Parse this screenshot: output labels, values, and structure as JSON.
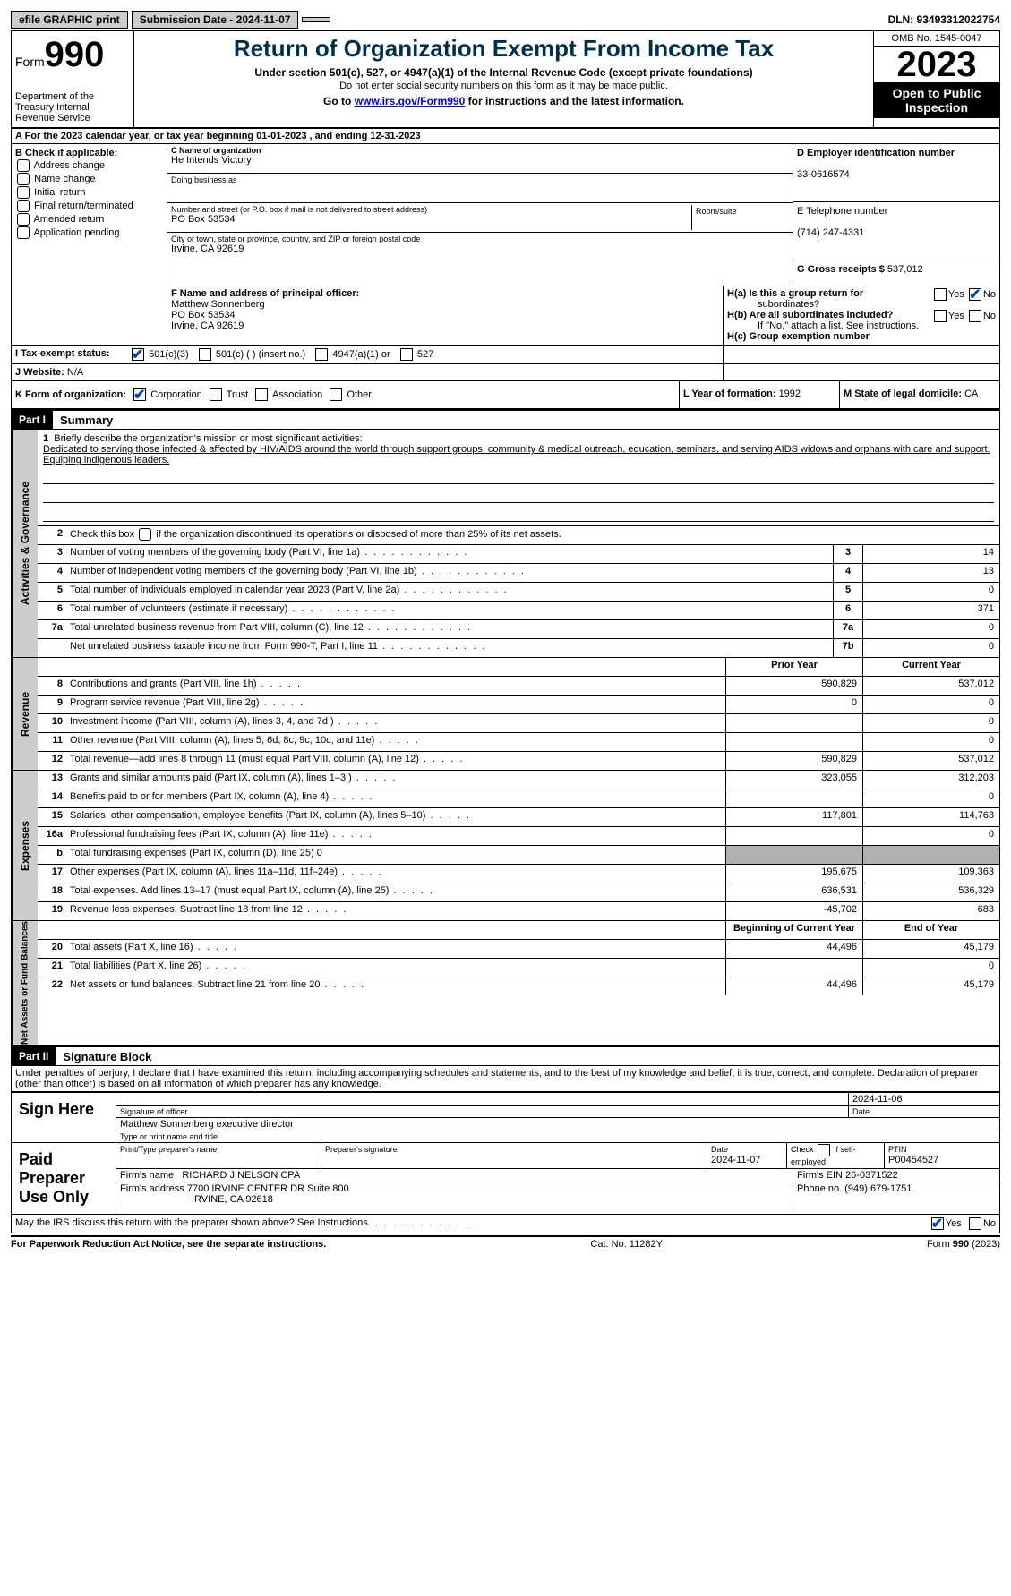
{
  "topbar": {
    "efile": "efile GRAPHIC print",
    "submission_label": "Submission Date - 2024-11-07",
    "dln": "DLN: 93493312022754"
  },
  "header": {
    "form_prefix": "Form",
    "form_number": "990",
    "dept": "Department of the Treasury\nInternal Revenue Service",
    "title": "Return of Organization Exempt From Income Tax",
    "sub1": "Under section 501(c), 527, or 4947(a)(1) of the Internal Revenue Code (except private foundations)",
    "sub2": "Do not enter social security numbers on this form as it may be made public.",
    "goto_prefix": "Go to ",
    "goto_link": "www.irs.gov/Form990",
    "goto_suffix": " for instructions and the latest information.",
    "omb": "OMB No. 1545-0047",
    "year": "2023",
    "open": "Open to Public Inspection"
  },
  "row_a": "A   For the 2023 calendar year, or tax year beginning 01-01-2023    , and ending 12-31-2023",
  "section_b": {
    "heading": "B Check if applicable:",
    "items": [
      "Address change",
      "Name change",
      "Initial return",
      "Final return/terminated",
      "Amended return",
      "Application pending"
    ]
  },
  "section_c": {
    "name_lbl": "C Name of organization",
    "name": "He Intends Victory",
    "dba_lbl": "Doing business as",
    "dba": "",
    "addr_lbl": "Number and street (or P.O. box if mail is not delivered to street address)",
    "addr": "PO Box 53534",
    "room_lbl": "Room/suite",
    "city_lbl": "City or town, state or province, country, and ZIP or foreign postal code",
    "city": "Irvine, CA  92619"
  },
  "section_d": {
    "lbl": "D Employer identification number",
    "val": "33-0616574"
  },
  "section_e": {
    "lbl": "E Telephone number",
    "val": "(714) 247-4331"
  },
  "section_g": {
    "lbl": "G Gross receipts $ ",
    "val": "537,012"
  },
  "section_f": {
    "lbl": "F  Name and address of principal officer:",
    "name": "Matthew Sonnenberg",
    "addr": "PO Box 53534",
    "city": "Irvine, CA  92619"
  },
  "section_h": {
    "ha": "H(a)  Is this a group return for",
    "ha2": "subordinates?",
    "hb": "H(b)  Are all subordinates included?",
    "hb_note": "If \"No,\" attach a list. See instructions.",
    "hc": "H(c)  Group exemption number  ",
    "yes": "Yes",
    "no": "No"
  },
  "section_i": {
    "lbl": "I     Tax-exempt status:",
    "opt1": "501(c)(3)",
    "opt2": "501(c) (  ) (insert no.)",
    "opt3": "4947(a)(1) or",
    "opt4": "527"
  },
  "section_j": {
    "lbl": "J     Website: ",
    "val": "N/A"
  },
  "section_k": {
    "lbl": "K Form of organization:",
    "opts": [
      "Corporation",
      "Trust",
      "Association",
      "Other"
    ]
  },
  "section_l": {
    "lbl": "L Year of formation: ",
    "val": "1992"
  },
  "section_m": {
    "lbl": "M State of legal domicile: ",
    "val": "CA"
  },
  "part1": {
    "label": "Part I",
    "title": "Summary"
  },
  "mission": {
    "num": "1",
    "lbl": "Briefly describe the organization's mission or most significant activities:",
    "text": "Dedicated to serving those infected & affected by HIV/AIDS around the world through support groups, community & medical outreach, education, seminars, and serving AIDS widows and orphans with care and support. Equiping indigenous leaders."
  },
  "line2": "Check this box      if the organization discontinued its operations or disposed of more than 25% of its net assets.",
  "governance_rows": [
    {
      "n": "3",
      "d": "Number of voting members of the governing body (Part VI, line 1a)",
      "box": "3",
      "v": "14"
    },
    {
      "n": "4",
      "d": "Number of independent voting members of the governing body (Part VI, line 1b)",
      "box": "4",
      "v": "13"
    },
    {
      "n": "5",
      "d": "Total number of individuals employed in calendar year 2023 (Part V, line 2a)",
      "box": "5",
      "v": "0"
    },
    {
      "n": "6",
      "d": "Total number of volunteers (estimate if necessary)",
      "box": "6",
      "v": "371"
    },
    {
      "n": "7a",
      "d": "Total unrelated business revenue from Part VIII, column (C), line 12",
      "box": "7a",
      "v": "0"
    },
    {
      "n": "",
      "d": "Net unrelated business taxable income from Form 990-T, Part I, line 11",
      "box": "7b",
      "v": "0"
    }
  ],
  "col_headers": {
    "prior": "Prior Year",
    "current": "Current Year"
  },
  "revenue_rows": [
    {
      "n": "8",
      "d": "Contributions and grants (Part VIII, line 1h)",
      "p": "590,829",
      "c": "537,012"
    },
    {
      "n": "9",
      "d": "Program service revenue (Part VIII, line 2g)",
      "p": "0",
      "c": "0"
    },
    {
      "n": "10",
      "d": "Investment income (Part VIII, column (A), lines 3, 4, and 7d )",
      "p": "",
      "c": "0"
    },
    {
      "n": "11",
      "d": "Other revenue (Part VIII, column (A), lines 5, 6d, 8c, 9c, 10c, and 11e)",
      "p": "",
      "c": "0"
    },
    {
      "n": "12",
      "d": "Total revenue—add lines 8 through 11 (must equal Part VIII, column (A), line 12)",
      "p": "590,829",
      "c": "537,012"
    }
  ],
  "expense_rows": [
    {
      "n": "13",
      "d": "Grants and similar amounts paid (Part IX, column (A), lines 1–3 )",
      "p": "323,055",
      "c": "312,203"
    },
    {
      "n": "14",
      "d": "Benefits paid to or for members (Part IX, column (A), line 4)",
      "p": "",
      "c": "0"
    },
    {
      "n": "15",
      "d": "Salaries, other compensation, employee benefits (Part IX, column (A), lines 5–10)",
      "p": "117,801",
      "c": "114,763"
    },
    {
      "n": "16a",
      "d": "Professional fundraising fees (Part IX, column (A), line 11e)",
      "p": "",
      "c": "0"
    },
    {
      "n": "b",
      "d": "Total fundraising expenses (Part IX, column (D), line 25) 0",
      "p": "grey",
      "c": "grey"
    },
    {
      "n": "17",
      "d": "Other expenses (Part IX, column (A), lines 11a–11d, 11f–24e)",
      "p": "195,675",
      "c": "109,363"
    },
    {
      "n": "18",
      "d": "Total expenses. Add lines 13–17 (must equal Part IX, column (A), line 25)",
      "p": "636,531",
      "c": "536,329"
    },
    {
      "n": "19",
      "d": "Revenue less expenses. Subtract line 18 from line 12",
      "p": "-45,702",
      "c": "683"
    }
  ],
  "net_headers": {
    "begin": "Beginning of Current Year",
    "end": "End of Year"
  },
  "net_rows": [
    {
      "n": "20",
      "d": "Total assets (Part X, line 16)",
      "p": "44,496",
      "c": "45,179"
    },
    {
      "n": "21",
      "d": "Total liabilities (Part X, line 26)",
      "p": "",
      "c": "0"
    },
    {
      "n": "22",
      "d": "Net assets or fund balances. Subtract line 21 from line 20",
      "p": "44,496",
      "c": "45,179"
    }
  ],
  "vtabs": {
    "gov": "Activities & Governance",
    "rev": "Revenue",
    "exp": "Expenses",
    "net": "Net Assets or Fund Balances"
  },
  "part2": {
    "label": "Part II",
    "title": "Signature Block"
  },
  "perjury": "Under penalties of perjury, I declare that I have examined this return, including accompanying schedules and statements, and to the best of my knowledge and belief, it is true, correct, and complete. Declaration of preparer (other than officer) is based on all information of which preparer has any knowledge.",
  "sign": {
    "here": "Sign Here",
    "date": "2024-11-06",
    "sig_lbl": "Signature of officer",
    "date_lbl": "Date",
    "name": "Matthew Sonnenberg  executive director",
    "name_lbl": "Type or print name and title"
  },
  "preparer": {
    "label": "Paid Preparer Use Only",
    "print_lbl": "Print/Type preparer's name",
    "sig_lbl": "Preparer's signature",
    "date_lbl": "Date",
    "date": "2024-11-07",
    "check_lbl": "Check       if self-employed",
    "ptin_lbl": "PTIN",
    "ptin": "P00454527",
    "firm_name_lbl": "Firm's name   ",
    "firm_name": "RICHARD J NELSON CPA",
    "firm_ein_lbl": "Firm's EIN  ",
    "firm_ein": "26-0371522",
    "firm_addr_lbl": "Firm's address ",
    "firm_addr": "7700 IRVINE CENTER DR Suite 800",
    "firm_city": "IRVINE, CA  92618",
    "phone_lbl": "Phone no. ",
    "phone": "(949) 679-1751"
  },
  "discuss": "May the IRS discuss this return with the preparer shown above? See Instructions.",
  "footer": {
    "left": "For Paperwork Reduction Act Notice, see the separate instructions.",
    "mid": "Cat. No. 11282Y",
    "right": "Form 990 (2023)"
  },
  "style": {
    "accent": "#003049",
    "link": "#0000ee",
    "grey_bg": "#cdcdcd",
    "cell_grey": "#b0b0b0"
  }
}
